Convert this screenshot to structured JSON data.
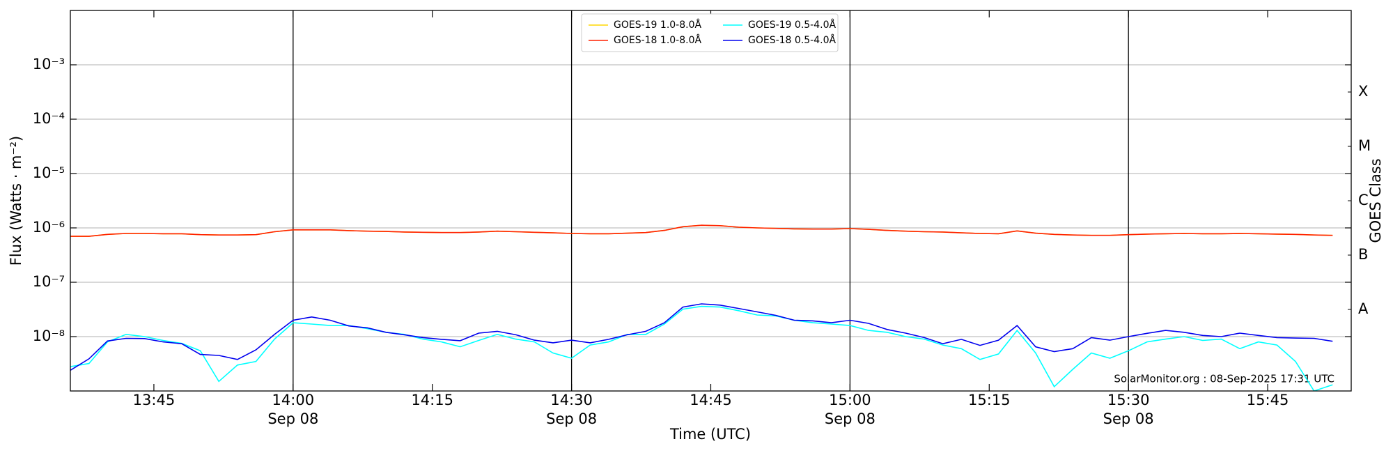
{
  "chart_data": {
    "type": "line",
    "xlabel": "Time (UTC)",
    "ylabel": "Flux (Watts · m⁻²)",
    "y2label": "GOES Class",
    "annotation": "SolarMonitor.org : 08-Sep-2025 17:31 UTC",
    "yscale": "log",
    "grid": true,
    "legend": "upper center",
    "xlim": [
      "13:36",
      "15:54"
    ],
    "xticks": [
      "13:45",
      {
        "value": "14:00",
        "label": "14:00",
        "date": "Sep 08"
      },
      "14:15",
      {
        "value": "14:30",
        "label": "14:30",
        "date": "Sep 08"
      },
      "14:45",
      {
        "value": "15:00",
        "label": "15:00",
        "date": "Sep 08"
      },
      "15:15",
      {
        "value": "15:30",
        "label": "15:30",
        "date": "Sep 08"
      },
      "15:45"
    ],
    "ylim": [
      1e-09,
      0.01
    ],
    "yticks": [
      {
        "value": 1e-08,
        "label": "10⁻⁸"
      },
      {
        "value": 1e-07,
        "label": "10⁻⁷"
      },
      {
        "value": 1e-06,
        "label": "10⁻⁶"
      },
      {
        "value": 1e-05,
        "label": "10⁻⁵"
      },
      {
        "value": 0.0001,
        "label": "10⁻⁴"
      },
      {
        "value": 0.001,
        "label": "10⁻³"
      }
    ],
    "y2lim": [
      1e-09,
      0.01
    ],
    "y2ticks": [
      {
        "value": 3.16e-08,
        "label": "A"
      },
      {
        "value": 3.16e-07,
        "label": "B"
      },
      {
        "value": 3.16e-06,
        "label": "C"
      },
      {
        "value": 3.16e-05,
        "label": "M"
      },
      {
        "value": 0.000316,
        "label": "X"
      }
    ],
    "x": [
      "13:36",
      "13:38",
      "13:40",
      "13:42",
      "13:44",
      "13:46",
      "13:48",
      "13:50",
      "13:52",
      "13:54",
      "13:56",
      "13:58",
      "14:00",
      "14:02",
      "14:04",
      "14:06",
      "14:08",
      "14:10",
      "14:12",
      "14:14",
      "14:16",
      "14:18",
      "14:20",
      "14:22",
      "14:24",
      "14:26",
      "14:28",
      "14:30",
      "14:32",
      "14:34",
      "14:36",
      "14:38",
      "14:40",
      "14:42",
      "14:44",
      "14:46",
      "14:48",
      "14:50",
      "14:52",
      "14:54",
      "14:56",
      "14:58",
      "15:00",
      "15:02",
      "15:04",
      "15:06",
      "15:08",
      "15:10",
      "15:12",
      "15:14",
      "15:16",
      "15:18",
      "15:20",
      "15:22",
      "15:24",
      "15:26",
      "15:28",
      "15:30",
      "15:32",
      "15:34",
      "15:36",
      "15:38",
      "15:40",
      "15:42",
      "15:44",
      "15:46",
      "15:48",
      "15:50",
      "15:52"
    ],
    "series": [
      {
        "name": "GOES-19 1.0-8.0Å",
        "color": "#ffd700",
        "values": [
          7e-07,
          7e-07,
          7.6e-07,
          7.9e-07,
          7.9e-07,
          7.8e-07,
          7.8e-07,
          7.5e-07,
          7.4e-07,
          7.4e-07,
          7.5e-07,
          8.5e-07,
          9.2e-07,
          9.2e-07,
          9.2e-07,
          8.9e-07,
          8.7e-07,
          8.6e-07,
          8.4e-07,
          8.3e-07,
          8.2e-07,
          8.2e-07,
          8.4e-07,
          8.7e-07,
          8.5e-07,
          8.3e-07,
          8.1e-07,
          7.9e-07,
          7.8e-07,
          7.8e-07,
          8e-07,
          8.2e-07,
          9e-07,
          1.05e-06,
          1.12e-06,
          1.1e-06,
          1.03e-06,
          1e-06,
          9.8e-07,
          9.6e-07,
          9.5e-07,
          9.5e-07,
          9.7e-07,
          9.4e-07,
          9e-07,
          8.7e-07,
          8.5e-07,
          8.4e-07,
          8.1e-07,
          7.9e-07,
          7.8e-07,
          8.8e-07,
          8e-07,
          7.6e-07,
          7.4e-07,
          7.3e-07,
          7.3e-07,
          7.5e-07,
          7.7e-07,
          7.8e-07,
          7.9e-07,
          7.8e-07,
          7.8e-07,
          7.9e-07,
          7.8e-07,
          7.7e-07,
          7.6e-07,
          7.4e-07,
          7.3e-07
        ]
      },
      {
        "name": "GOES-18 1.0-8.0Å",
        "color": "#ff2000",
        "values": [
          7e-07,
          7e-07,
          7.6e-07,
          7.9e-07,
          7.9e-07,
          7.8e-07,
          7.8e-07,
          7.5e-07,
          7.4e-07,
          7.4e-07,
          7.5e-07,
          8.5e-07,
          9.2e-07,
          9.2e-07,
          9.2e-07,
          8.9e-07,
          8.7e-07,
          8.6e-07,
          8.4e-07,
          8.3e-07,
          8.2e-07,
          8.2e-07,
          8.4e-07,
          8.7e-07,
          8.5e-07,
          8.3e-07,
          8.1e-07,
          7.9e-07,
          7.8e-07,
          7.8e-07,
          8e-07,
          8.2e-07,
          9e-07,
          1.05e-06,
          1.12e-06,
          1.1e-06,
          1.03e-06,
          1e-06,
          9.8e-07,
          9.6e-07,
          9.5e-07,
          9.5e-07,
          9.7e-07,
          9.4e-07,
          9e-07,
          8.7e-07,
          8.5e-07,
          8.4e-07,
          8.1e-07,
          7.9e-07,
          7.8e-07,
          8.8e-07,
          8e-07,
          7.6e-07,
          7.4e-07,
          7.3e-07,
          7.3e-07,
          7.5e-07,
          7.7e-07,
          7.8e-07,
          7.9e-07,
          7.8e-07,
          7.8e-07,
          7.9e-07,
          7.8e-07,
          7.7e-07,
          7.6e-07,
          7.4e-07,
          7.3e-07
        ]
      },
      {
        "name": "GOES-19 0.5-4.0Å",
        "color": "#00ffff",
        "values": [
          2.8e-09,
          3.2e-09,
          8e-09,
          1.1e-08,
          1e-08,
          8.5e-09,
          7.5e-09,
          5.5e-09,
          1.5e-09,
          3e-09,
          3.5e-09,
          9e-09,
          1.8e-08,
          1.7e-08,
          1.6e-08,
          1.6e-08,
          1.4e-08,
          1.2e-08,
          1.1e-08,
          9e-09,
          8e-09,
          6.5e-09,
          8.5e-09,
          1.1e-08,
          9e-09,
          8e-09,
          5e-09,
          4e-09,
          7e-09,
          8e-09,
          1.1e-08,
          1.1e-08,
          1.7e-08,
          3.2e-08,
          3.6e-08,
          3.5e-08,
          3e-08,
          2.5e-08,
          2.4e-08,
          2e-08,
          1.8e-08,
          1.7e-08,
          1.6e-08,
          1.3e-08,
          1.2e-08,
          1e-08,
          9e-09,
          7e-09,
          6e-09,
          3.8e-09,
          4.8e-09,
          1.3e-08,
          5e-09,
          1.2e-09,
          2.5e-09,
          5e-09,
          4e-09,
          5.5e-09,
          8e-09,
          9e-09,
          1e-08,
          8.5e-09,
          9e-09,
          6e-09,
          8e-09,
          7e-09,
          3.5e-09,
          1e-09,
          1.3e-09
        ]
      },
      {
        "name": "GOES-18 0.5-4.0Å",
        "color": "#0000ee",
        "values": [
          2.4e-09,
          3.9e-09,
          8.3e-09,
          9.3e-09,
          9.2e-09,
          8e-09,
          7.4e-09,
          4.7e-09,
          4.5e-09,
          3.8e-09,
          5.7e-09,
          1.1e-08,
          2e-08,
          2.3e-08,
          2e-08,
          1.57e-08,
          1.45e-08,
          1.2e-08,
          1.08e-08,
          9.6e-09,
          8.9e-09,
          8.4e-09,
          1.16e-08,
          1.25e-08,
          1.08e-08,
          8.6e-09,
          7.7e-09,
          8.6e-09,
          7.7e-09,
          8.9e-09,
          1.08e-08,
          1.25e-08,
          1.8e-08,
          3.5e-08,
          4e-08,
          3.8e-08,
          3.3e-08,
          2.85e-08,
          2.46e-08,
          2e-08,
          1.95e-08,
          1.8e-08,
          2e-08,
          1.75e-08,
          1.35e-08,
          1.16e-08,
          9.6e-09,
          7.4e-09,
          8.9e-09,
          6.9e-09,
          8.6e-09,
          1.6e-08,
          6.5e-09,
          5.3e-09,
          6e-09,
          9.6e-09,
          8.6e-09,
          1e-08,
          1.15e-08,
          1.3e-08,
          1.2e-08,
          1.05e-08,
          1e-08,
          1.16e-08,
          1.05e-08,
          9.6e-09,
          9.4e-09,
          9.3e-09,
          8.2e-09
        ]
      }
    ]
  }
}
